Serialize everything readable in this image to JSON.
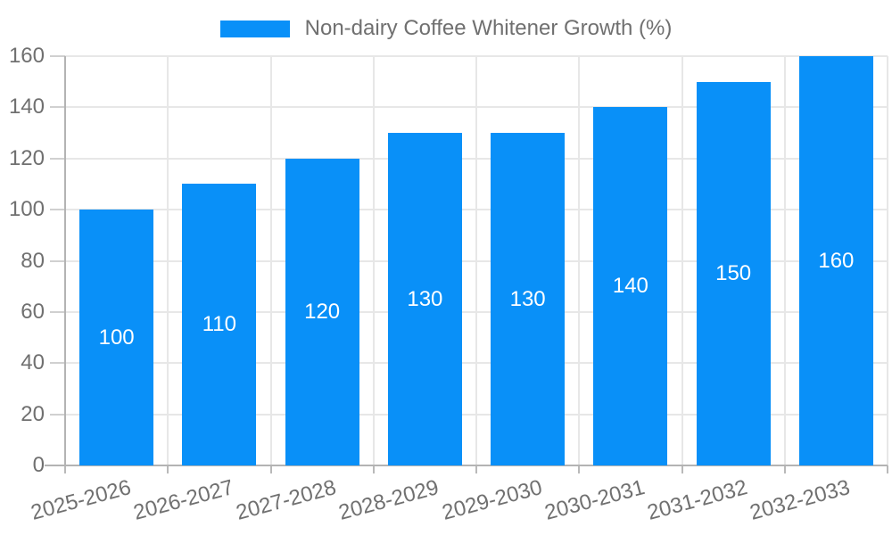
{
  "legend": {
    "label": "Non-dairy Coffee Whitener Growth (%)"
  },
  "chart_data": {
    "type": "bar",
    "title": "",
    "categories": [
      "2025-2026",
      "2026-2027",
      "2027-2028",
      "2028-2029",
      "2029-2030",
      "2030-2031",
      "2031-2032",
      "2032-2033"
    ],
    "series": [
      {
        "name": "Non-dairy Coffee Whitener Growth (%)",
        "values": [
          100,
          110,
          120,
          130,
          130,
          140,
          150,
          160
        ],
        "color": "#0990F8"
      }
    ],
    "bar_value_labels": [
      "100",
      "110",
      "120",
      "130",
      "130",
      "140",
      "150",
      "160"
    ],
    "xlabel": "",
    "ylabel": "",
    "ylim": [
      0,
      160
    ],
    "yticks": [
      0,
      20,
      40,
      60,
      80,
      100,
      120,
      140,
      160
    ],
    "grid": "horizontal-and-vertical",
    "legend_position": "top-center",
    "x_label_rotation_deg": -15
  },
  "colors": {
    "bar": "#0990F8",
    "grid": "#e7e7e7",
    "axis": "#b3b3b3",
    "y_tick": "#d0d0d0",
    "x_tick": "#b9b9b9",
    "text": "#707070",
    "bar_label_text": "#ffffff",
    "background": "#ffffff"
  }
}
